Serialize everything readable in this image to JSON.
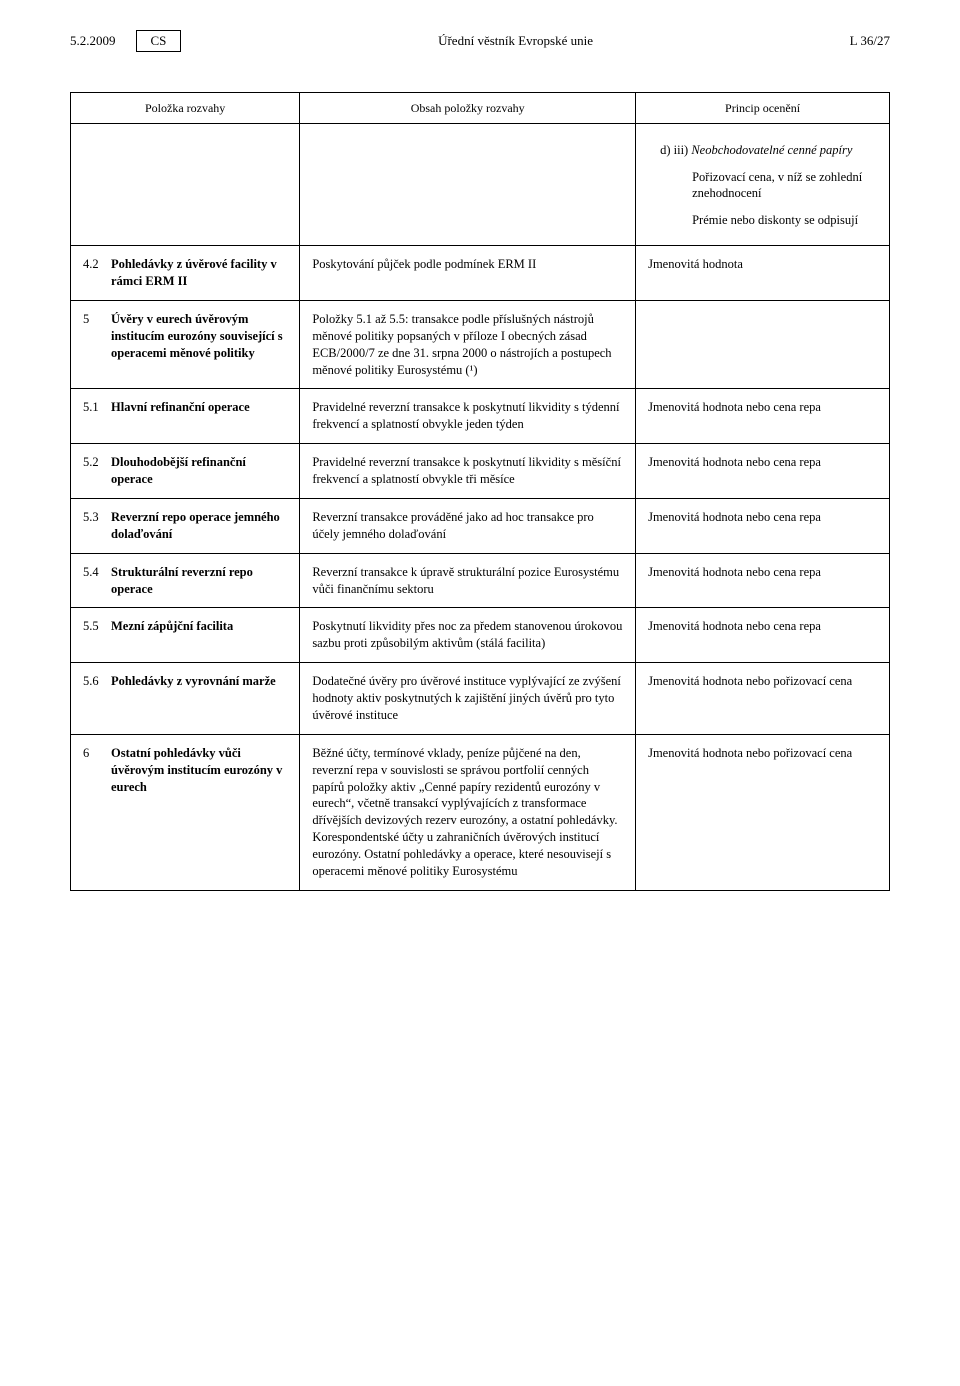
{
  "header": {
    "date": "5.2.2009",
    "lang": "CS",
    "center": "Úřední věstník Evropské unie",
    "right": "L 36/27"
  },
  "table": {
    "columns": [
      "Položka rozvahy",
      "Obsah položky rozvahy",
      "Princip ocenění"
    ],
    "intro": {
      "line1_prefix": "d) iii)",
      "line1": "Neobchodovatelné cenné papíry",
      "line2": "Pořizovací cena, v níž se zohlední znehodnocení",
      "line3": "Prémie nebo diskonty se odpisují"
    },
    "rows": [
      {
        "num": "4.2",
        "label": "Pohledávky z úvěrové facility v rámci ERM II",
        "desc": "Poskytování půjček podle podmínek ERM II",
        "val": "Jmenovitá hodnota"
      },
      {
        "num": "5",
        "label": "Úvěry v eurech úvěrovým institucím eurozóny související s operacemi měnové politiky",
        "desc": "Položky 5.1 až 5.5: transakce podle příslušných nástrojů měnové politiky popsaných v příloze I obecných zásad ECB/2000/7 ze dne 31. srpna 2000 o nástrojích a postupech měnové politiky Eurosystému (¹)",
        "val": ""
      },
      {
        "num": "5.1",
        "label": "Hlavní refinanční operace",
        "desc": "Pravidelné reverzní transakce k poskytnutí likvidity s týdenní frekvencí a splatností obvykle jeden týden",
        "val": "Jmenovitá hodnota nebo cena repa"
      },
      {
        "num": "5.2",
        "label": "Dlouhodobější refinanční operace",
        "desc": "Pravidelné reverzní transakce k poskytnutí likvidity s měsíční frekvencí a splatností obvykle tři měsíce",
        "val": "Jmenovitá hodnota nebo cena repa"
      },
      {
        "num": "5.3",
        "label": "Reverzní repo operace jemného dolaďování",
        "desc": "Reverzní transakce prováděné jako ad hoc transakce pro účely jemného dolaďování",
        "val": "Jmenovitá hodnota nebo cena repa"
      },
      {
        "num": "5.4",
        "label": "Strukturální reverzní repo operace",
        "desc": "Reverzní transakce k úpravě strukturální pozice Eurosystému vůči finančnímu sektoru",
        "val": "Jmenovitá hodnota nebo cena repa"
      },
      {
        "num": "5.5",
        "label": "Mezní zápůjční facilita",
        "desc": "Poskytnutí likvidity přes noc za předem stanovenou úrokovou sazbu proti způsobilým aktivům (stálá facilita)",
        "val": "Jmenovitá hodnota nebo cena repa"
      },
      {
        "num": "5.6",
        "label": "Pohledávky z vyrovnání marže",
        "desc": "Dodatečné úvěry pro úvěrové instituce vyplývající ze zvýšení hodnoty aktiv poskytnutých k zajištění jiných úvěrů pro tyto úvěrové instituce",
        "val": "Jmenovitá hodnota nebo pořizovací cena"
      },
      {
        "num": "6",
        "label": "Ostatní pohledávky vůči úvěrovým institucím eurozóny v eurech",
        "desc": "Běžné účty, termínové vklady, peníze půjčené na den, reverzní repa v souvislosti se správou portfolií cenných papírů položky aktiv „Cenné papíry rezidentů eurozóny v eurech“, včetně transakcí vyplývajících z transformace dřívějších devizových rezerv eurozóny, a ostatní pohledávky. Korespondentské účty u zahraničních úvěrových institucí eurozóny. Ostatní pohledávky a operace, které nesouvisejí s operacemi měnové politiky Eurosystému",
        "val": "Jmenovitá hodnota nebo pořizovací cena"
      }
    ]
  }
}
